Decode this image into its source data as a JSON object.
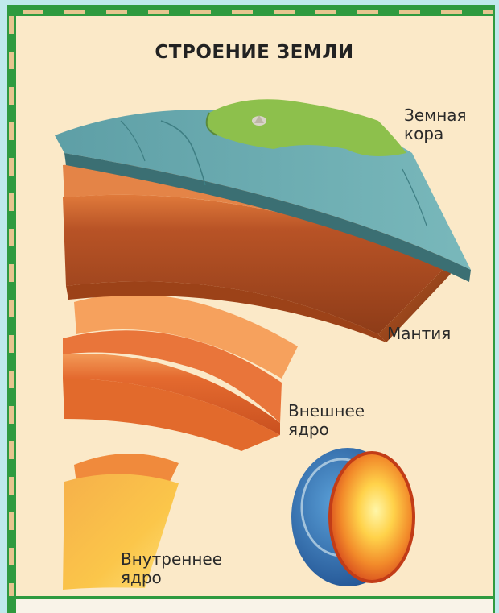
{
  "title": "СТРОЕНИЕ ЗЕМЛИ",
  "labels": {
    "crust_line1": "Земная",
    "crust_line2": "кора",
    "mantle": "Мантия",
    "outer_core_line1": "Внешнее",
    "outer_core_line2": "ядро",
    "inner_core_line1": "Внутреннее",
    "inner_core_line2": "ядро"
  },
  "colors": {
    "frame": "#2f9a3f",
    "panel": "#fbe9c8",
    "ocean": "#6fb0b3",
    "land": "#8dc04c",
    "mantle": "#b95a25",
    "outer_core": "#e06a2e",
    "inner_core": "#f6b63a"
  }
}
